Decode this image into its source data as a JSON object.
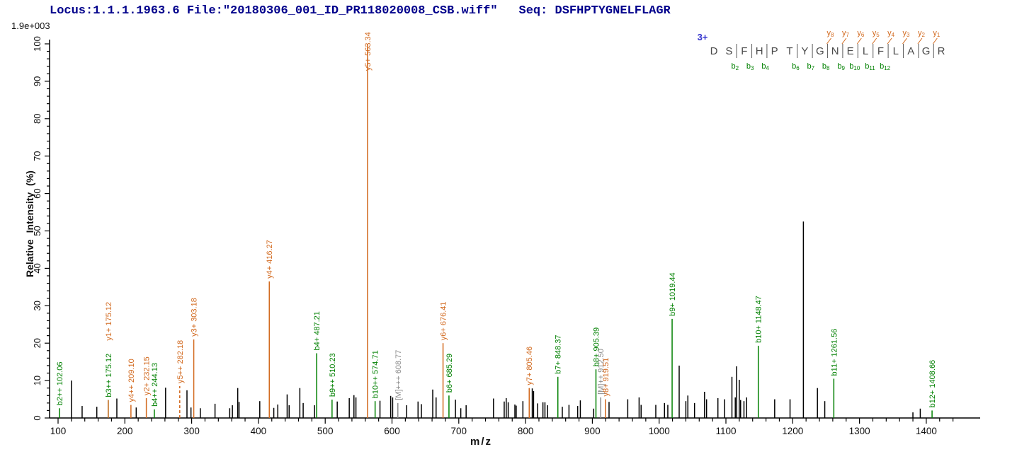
{
  "header": {
    "locus": "Locus:1.1.1.1963.6",
    "file": "File:\"20180306_001_ID_PR118020008_CSB.wiff\"",
    "seq": "Seq: DSFHPTYGNELFLAGR"
  },
  "scale_label": "1.9e+003",
  "colors": {
    "b_ion": "#008000",
    "y_ion": "#d2691e",
    "precursor": "#8a8a8a",
    "peak": "#000000",
    "header_text": "#00008b",
    "charge_text": "#3232cd",
    "axis": "#000000",
    "residue_text": "#4a4a4a"
  },
  "sequence_panel": {
    "charge": "3+",
    "residues": [
      "D",
      "S",
      "F",
      "H",
      "P",
      "T",
      "Y",
      "G",
      "N",
      "E",
      "L",
      "F",
      "L",
      "A",
      "G",
      "R"
    ],
    "cuts": [
      {
        "after": 2,
        "b": "b2",
        "y": null
      },
      {
        "after": 3,
        "b": "b3",
        "y": null
      },
      {
        "after": 4,
        "b": "b4",
        "y": null
      },
      {
        "after": 6,
        "b": "b6",
        "y": null
      },
      {
        "after": 7,
        "b": "b7",
        "y": null
      },
      {
        "after": 8,
        "b": "b8",
        "y": "y8"
      },
      {
        "after": 9,
        "b": "b9",
        "y": "y7"
      },
      {
        "after": 10,
        "b": "b10",
        "y": "y6"
      },
      {
        "after": 11,
        "b": "b11",
        "y": "y5"
      },
      {
        "after": 12,
        "b": "b12",
        "y": "y4"
      },
      {
        "after": 13,
        "b": null,
        "y": "y3"
      },
      {
        "after": 14,
        "b": null,
        "y": "y2"
      },
      {
        "after": 15,
        "b": null,
        "y": "y1"
      }
    ]
  },
  "chart_data": {
    "type": "bar",
    "subtype": "ms2-spectrum",
    "xlabel": "m/z",
    "ylabel": "Relative Intensity (%)",
    "intensity_scale": "1.9e+003",
    "xlim": [
      80,
      1475
    ],
    "ylim": [
      0,
      100
    ],
    "x_major_tick_step": 100,
    "x_minor_tick_step": 20,
    "x_label_range": [
      100,
      1400
    ],
    "y_major_tick_step": 10,
    "y_minor_tick_step": 2,
    "annotated_peaks": [
      {
        "label": "b2++ 102.06",
        "mz": 102.06,
        "intensity": 2.6,
        "series": "b"
      },
      {
        "label": "b3++ 175.12",
        "mz": 175.12,
        "intensity": 4.8,
        "series": "b"
      },
      {
        "label": "y1+ 175.12",
        "mz": 175.12,
        "intensity": 4.8,
        "series": "y",
        "label_dy": -80
      },
      {
        "label": "y4++ 209.10",
        "mz": 209.1,
        "intensity": 3.5,
        "series": "y"
      },
      {
        "label": "y2+ 232.15",
        "mz": 232.15,
        "intensity": 5.3,
        "series": "y"
      },
      {
        "label": "b4++ 244.13",
        "mz": 244.13,
        "intensity": 2.3,
        "series": "b"
      },
      {
        "label": "y5++ 282.18",
        "mz": 282.18,
        "intensity": 8.5,
        "series": "y",
        "dashed": true
      },
      {
        "label": "y3+ 303.18",
        "mz": 303.18,
        "intensity": 21.0,
        "series": "y"
      },
      {
        "label": "y4+ 416.27",
        "mz": 416.27,
        "intensity": 36.5,
        "series": "y"
      },
      {
        "label": "b4+ 487.21",
        "mz": 487.21,
        "intensity": 17.3,
        "series": "b"
      },
      {
        "label": "b9++ 510.23",
        "mz": 510.23,
        "intensity": 4.9,
        "series": "b"
      },
      {
        "label": "y5+ 563.34",
        "mz": 563.34,
        "intensity": 100,
        "series": "y",
        "label_dy": 42
      },
      {
        "label": "b10++ 574.71",
        "mz": 574.71,
        "intensity": 4.5,
        "series": "b"
      },
      {
        "label": "[M]+++ 608.77",
        "mz": 608.77,
        "intensity": 4.0,
        "series": "precursor"
      },
      {
        "label": "y6+ 676.41",
        "mz": 676.41,
        "intensity": 20.0,
        "series": "y"
      },
      {
        "label": "b6+ 685.29",
        "mz": 685.29,
        "intensity": 6.0,
        "series": "b"
      },
      {
        "label": "y7+ 805.46",
        "mz": 805.46,
        "intensity": 8.0,
        "series": "y"
      },
      {
        "label": "b7+ 848.37",
        "mz": 848.37,
        "intensity": 11.0,
        "series": "b"
      },
      {
        "label": "b8+ 905.39",
        "mz": 905.39,
        "intensity": 13.0,
        "series": "b"
      },
      {
        "label": "[M]++ 912.50",
        "mz": 912.5,
        "intensity": 5.5,
        "series": "precursor"
      },
      {
        "label": "y8+ 919.51",
        "mz": 919.51,
        "intensity": 5.0,
        "series": "y"
      },
      {
        "label": "b9+ 1019.44",
        "mz": 1019.44,
        "intensity": 26.5,
        "series": "b"
      },
      {
        "label": "b10+ 1148.47",
        "mz": 1148.47,
        "intensity": 19.3,
        "series": "b"
      },
      {
        "label": "b11+ 1261.56",
        "mz": 1261.56,
        "intensity": 10.5,
        "series": "b"
      },
      {
        "label": "b12+ 1408.66",
        "mz": 1408.66,
        "intensity": 2.0,
        "series": "b"
      }
    ],
    "unannotated_peaks": [
      [
        120,
        10.0
      ],
      [
        136,
        3.2
      ],
      [
        158,
        3.0
      ],
      [
        188,
        5.2
      ],
      [
        217,
        2.8
      ],
      [
        261,
        8.1
      ],
      [
        293,
        7.4
      ],
      [
        299,
        2.8
      ],
      [
        313,
        2.6
      ],
      [
        335,
        3.8
      ],
      [
        357,
        2.6
      ],
      [
        361,
        3.4
      ],
      [
        369,
        8.0
      ],
      [
        371,
        4.3
      ],
      [
        402,
        4.5
      ],
      [
        423,
        2.7
      ],
      [
        429,
        3.6
      ],
      [
        443,
        6.3
      ],
      [
        446,
        3.4
      ],
      [
        462,
        8.0
      ],
      [
        467,
        4.0
      ],
      [
        484,
        3.4
      ],
      [
        518,
        4.4
      ],
      [
        536,
        5.3
      ],
      [
        543,
        6.1
      ],
      [
        546,
        5.5
      ],
      [
        582,
        4.6
      ],
      [
        598,
        5.9
      ],
      [
        601,
        5.5
      ],
      [
        622,
        3.4
      ],
      [
        639,
        4.4
      ],
      [
        644,
        3.7
      ],
      [
        661,
        7.6
      ],
      [
        666,
        5.5
      ],
      [
        695,
        4.9
      ],
      [
        703,
        2.6
      ],
      [
        711,
        3.4
      ],
      [
        752,
        5.2
      ],
      [
        768,
        4.4
      ],
      [
        771,
        5.3
      ],
      [
        774,
        4.2
      ],
      [
        784,
        3.6
      ],
      [
        786,
        3.3
      ],
      [
        796,
        4.5
      ],
      [
        810,
        7.9
      ],
      [
        812,
        7.2
      ],
      [
        818,
        3.9
      ],
      [
        826,
        4.2
      ],
      [
        829,
        4.2
      ],
      [
        833,
        3.4
      ],
      [
        855,
        3.0
      ],
      [
        865,
        3.5
      ],
      [
        878,
        3.2
      ],
      [
        882,
        4.7
      ],
      [
        902,
        2.5
      ],
      [
        925,
        4.3
      ],
      [
        953,
        5.0
      ],
      [
        970,
        5.5
      ],
      [
        973,
        3.5
      ],
      [
        995,
        3.5
      ],
      [
        1008,
        4.0
      ],
      [
        1013,
        3.5
      ],
      [
        1030,
        14.0
      ],
      [
        1040,
        4.5
      ],
      [
        1043,
        6.0
      ],
      [
        1053,
        4.0
      ],
      [
        1068,
        7.0
      ],
      [
        1071,
        5.0
      ],
      [
        1088,
        5.3
      ],
      [
        1098,
        5.0
      ],
      [
        1109,
        11.0
      ],
      [
        1114,
        5.5
      ],
      [
        1116,
        13.8
      ],
      [
        1120,
        10.2
      ],
      [
        1122,
        4.8
      ],
      [
        1127,
        4.5
      ],
      [
        1131,
        5.5
      ],
      [
        1173,
        5.0
      ],
      [
        1196,
        5.0
      ],
      [
        1216,
        52.5
      ],
      [
        1237,
        8.0
      ],
      [
        1248,
        4.5
      ],
      [
        1380,
        1.5
      ],
      [
        1391,
        2.5
      ]
    ]
  }
}
